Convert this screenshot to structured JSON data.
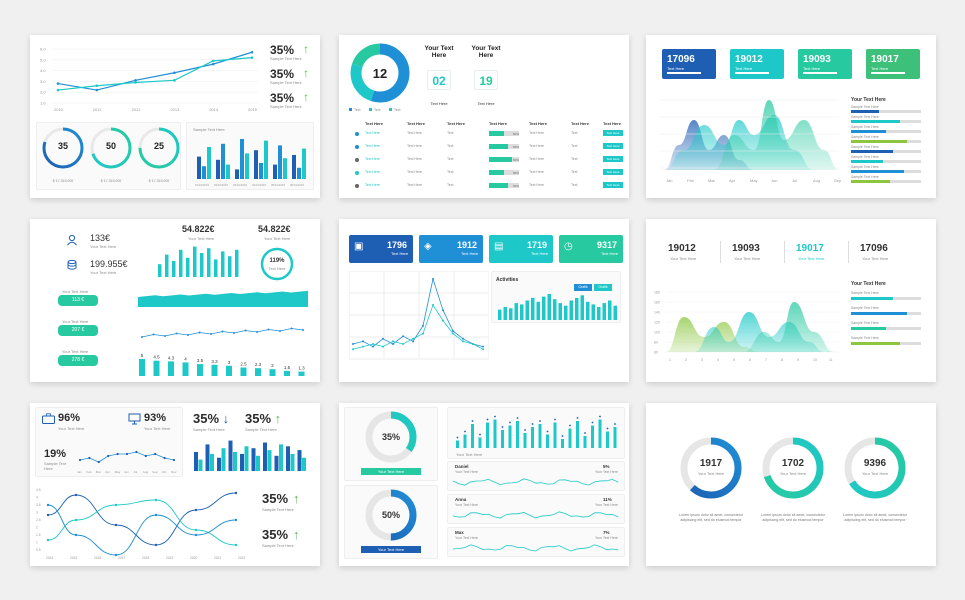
{
  "colors": {
    "blue": "#1e5fb3",
    "mid_blue": "#1f8fd6",
    "teal": "#1ec8c8",
    "green": "#27c9a0",
    "lime": "#8cc63f"
  },
  "slide1": {
    "x_ticks": [
      "2010",
      "2011",
      "2012",
      "2013",
      "2014",
      "2015"
    ],
    "y_ticks": [
      "6.0",
      "5.0",
      "4.0",
      "3.0",
      "2.0",
      "1.0"
    ],
    "series_a": [
      2.8,
      2.2,
      3.1,
      3.8,
      4.6,
      5.7
    ],
    "series_b": [
      2.2,
      2.6,
      2.9,
      3.1,
      4.9,
      5.2
    ],
    "stats": [
      {
        "value": "35%",
        "label": "Sample Text Here"
      },
      {
        "value": "35%",
        "label": "Sample Text Here"
      },
      {
        "value": "35%",
        "label": "Sample Text Here"
      }
    ],
    "donuts": [
      {
        "value": "35",
        "caption": "$ 17.319,000"
      },
      {
        "value": "50",
        "caption": "$ 17.319,000"
      },
      {
        "value": "25",
        "caption": "$ 17.319,000"
      }
    ],
    "bar_title": "Sample Text Here",
    "bars": [
      [
        14,
        8,
        20
      ],
      [
        12,
        22,
        9
      ],
      [
        6,
        25,
        16
      ],
      [
        18,
        10,
        24
      ],
      [
        9,
        21,
        13
      ],
      [
        15,
        7,
        19
      ]
    ],
    "bar_ticks": [
      "01/01/2015",
      "02/01/2015",
      "03/01/2015",
      "04/01/2015",
      "05/01/2015",
      "06/01/2015"
    ]
  },
  "slide2": {
    "donut_value": "12",
    "donut_legend": [
      "Text",
      "Text",
      "Text"
    ],
    "heading_a": "Your Text Here",
    "heading_b": "Your Text Here",
    "num_a": "02",
    "num_b": "19",
    "sub_a": "Text Here",
    "sub_b": "Text Here",
    "table_headers": [
      "Text Here",
      "Text Here",
      "Text Here",
      "Text Here",
      "Text Here",
      "Text Here",
      "Text Here"
    ],
    "row_label": "Text Here",
    "row_cell": "Text Here",
    "row_short": "Text",
    "row_btn": "Text Here",
    "row_pct": "50%",
    "rows": 5
  },
  "slide3": {
    "kpis": [
      {
        "value": "17096",
        "label": "Text Here"
      },
      {
        "value": "19012",
        "label": "Text Here"
      },
      {
        "value": "19093",
        "label": "Text Here"
      },
      {
        "value": "19017",
        "label": "Text Here"
      }
    ],
    "side_title": "Your Text Here",
    "side_item": "Sample Text Here",
    "months": [
      "Jan",
      "Feb",
      "Mar",
      "Apr",
      "May",
      "Jun",
      "Jul",
      "Aug",
      "Sep"
    ],
    "bars_fill": [
      0.4,
      0.7,
      0.5,
      0.8,
      0.6,
      0.45,
      0.75,
      0.55
    ]
  },
  "slide4": {
    "stat_a": {
      "value": "133€",
      "label": "Your Text Here"
    },
    "stat_b": {
      "value": "199.955€",
      "label": "Your Text Here"
    },
    "center_val": "54.822€",
    "center_lbl": "Your Text Here",
    "right_val": "54.822€",
    "right_lbl": "Your Text Here",
    "ring_val": "119%",
    "ring_lbl": "Text Here",
    "pill_title": "Your Text Here",
    "pills": [
      "113 €",
      "207 €",
      "278 €"
    ],
    "bars_top": [
      8,
      14,
      10,
      17,
      12,
      19,
      15,
      18,
      11,
      16,
      13,
      17
    ],
    "bottom_labels": [
      "5",
      "4.5",
      "4.3",
      "4",
      "3.5",
      "3.3",
      "3",
      "2.5",
      "2.3",
      "2",
      "1.5",
      "1.3"
    ],
    "bottom_values": [
      5,
      4.5,
      4.3,
      4,
      3.5,
      3.3,
      3,
      2.5,
      2.3,
      2,
      1.5,
      1.3
    ]
  },
  "slide5": {
    "cards": [
      {
        "value": "1796",
        "label": "Text Here"
      },
      {
        "value": "1912",
        "label": "Text Here"
      },
      {
        "value": "1719",
        "label": "Text Here"
      },
      {
        "value": "9317",
        "label": "Text Here"
      }
    ],
    "activities_title": "Activities",
    "legend_a": "Grafik",
    "legend_b": "Grafik",
    "line_a": [
      5,
      6,
      4,
      7,
      5,
      8,
      6,
      12,
      30,
      18,
      10,
      7,
      5,
      4
    ],
    "line_b": [
      3,
      4,
      5,
      4,
      6,
      5,
      7,
      9,
      20,
      14,
      9,
      6,
      5,
      3
    ],
    "act_bars": [
      8,
      10,
      9,
      13,
      12,
      15,
      17,
      14,
      18,
      20,
      16,
      13,
      11,
      15,
      17,
      19,
      14,
      12,
      10,
      13,
      15,
      11
    ]
  },
  "slide6": {
    "kpis": [
      {
        "value": "19012",
        "label": "Your Text Here"
      },
      {
        "value": "19093",
        "label": "Your Text Here"
      },
      {
        "value": "19017",
        "label": "Your Text Here"
      },
      {
        "value": "17096",
        "label": "Your Text Here"
      }
    ],
    "side_title": "Your Text Here",
    "side_item": "Sample Text Here",
    "y_ticks": [
      "180",
      "160",
      "140",
      "120",
      "100",
      "80",
      "60"
    ],
    "x_ticks": [
      "1",
      "2",
      "3",
      "4",
      "5",
      "6",
      "7",
      "8",
      "9",
      "10",
      "11"
    ],
    "bars_fill": [
      0.6,
      0.8,
      0.5,
      0.7
    ]
  },
  "slide7": {
    "stat_a": {
      "value": "96%",
      "label": "Your Text Here"
    },
    "stat_b": {
      "value": "93%",
      "label": "Your Text Here"
    },
    "stat_c": {
      "value": "19%",
      "label": "Sample Text Here"
    },
    "months": [
      "Jan",
      "Feb",
      "Mar",
      "Apr",
      "May",
      "Jun",
      "Jul",
      "Aug",
      "Sep",
      "Oct",
      "Nov"
    ],
    "mini_line": [
      4,
      5,
      3,
      6,
      7,
      7,
      8,
      6,
      7,
      5,
      4
    ],
    "top_right": [
      {
        "value": "35%",
        "label": "Sample Text Here",
        "dir": "down"
      },
      {
        "value": "35%",
        "label": "Sample Text Here",
        "dir": "up"
      }
    ],
    "mini_bars": [
      [
        10,
        6
      ],
      [
        14,
        9
      ],
      [
        7,
        12
      ],
      [
        16,
        10
      ],
      [
        9,
        13
      ],
      [
        12,
        8
      ],
      [
        15,
        11
      ],
      [
        8,
        14
      ],
      [
        13,
        9
      ],
      [
        11,
        7
      ]
    ],
    "wave_y_ticks": [
      "4.5",
      "4",
      "3.5",
      "3",
      "2.5",
      "2",
      "1.5",
      "1",
      "0.5"
    ],
    "wave_x_ticks": [
      "2014",
      "2015",
      "2016",
      "2017",
      "2018",
      "2019",
      "2020",
      "2021",
      "2022"
    ],
    "bottom_right": [
      {
        "value": "35%",
        "label": "Sample Text Here"
      },
      {
        "value": "35%",
        "label": "Sample Text Here"
      }
    ]
  },
  "slide8": {
    "gauges": [
      {
        "value": "35%",
        "label": "Your Text Here",
        "fill": 0.35
      },
      {
        "value": "50%",
        "label": "Your Text Here",
        "fill": 0.5
      }
    ],
    "bar_caption": "Your Text Here",
    "bars": [
      5,
      9,
      16,
      7,
      17,
      19,
      12,
      15,
      18,
      10,
      14,
      16,
      9,
      17,
      6,
      13,
      18,
      8,
      15,
      19,
      11,
      14
    ],
    "people": [
      {
        "name": "Daniel",
        "sub": "Your Text Here",
        "value": "5%"
      },
      {
        "name": "Anna",
        "sub": "Your Text Here",
        "value": "11%"
      },
      {
        "name": "Max",
        "sub": "Your Text Here",
        "value": "7%"
      }
    ]
  },
  "slide9": {
    "rings": [
      {
        "value": "1917",
        "label": "Your Text Here",
        "fill": 0.62
      },
      {
        "value": "1702",
        "label": "Your Text Here",
        "fill": 0.7
      },
      {
        "value": "9396",
        "label": "Your Text Here",
        "fill": 0.66
      }
    ],
    "lorem": "Lorem ipsum dolor sit amet, consectetur adipiscing elit, sed do eiusmod tempor"
  }
}
